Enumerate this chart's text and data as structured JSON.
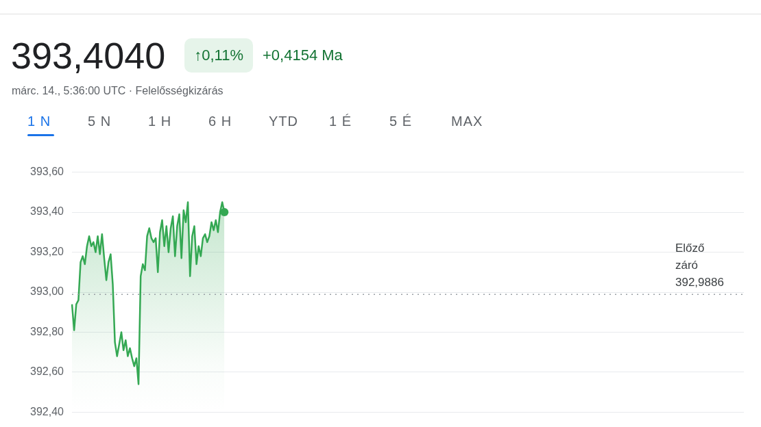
{
  "chart_data": {
    "type": "area",
    "title": "393,4040",
    "subtitle": "márc. 14., 5:36:00 UTC · Felelősségkizárás",
    "annotations": [
      "↑0,11%",
      "+0,4154 Ma",
      "1 N",
      "5 N",
      "1 H",
      "6 H",
      "YTD",
      "1 É",
      "5 É",
      "MAX"
    ],
    "categories": [
      null,
      null,
      null,
      null,
      null,
      null,
      null,
      null,
      null,
      null,
      null,
      null,
      null,
      null,
      null,
      null,
      null,
      null,
      null,
      null,
      null,
      null,
      null,
      null,
      null,
      null,
      null,
      null,
      null,
      null,
      null,
      null,
      null,
      null,
      null,
      null,
      null,
      null,
      null,
      null,
      null,
      null,
      null,
      null,
      null,
      null,
      null,
      null,
      null,
      null,
      null,
      null,
      null,
      null,
      null,
      null,
      null,
      null,
      null,
      null,
      null,
      null,
      null,
      null,
      null,
      null,
      null,
      null,
      null,
      null,
      null,
      null,
      null,
      null,
      null,
      null,
      null,
      null,
      null,
      null,
      null,
      null,
      null,
      null,
      null,
      null,
      null,
      null,
      null,
      null,
      null,
      null,
      null,
      null,
      null,
      null,
      null,
      null,
      null,
      null,
      null,
      null,
      null,
      null,
      null,
      null,
      null,
      null,
      null,
      null,
      null,
      null,
      null,
      null,
      null,
      null,
      null,
      null,
      null,
      null,
      null,
      null,
      null,
      null,
      null,
      null,
      null,
      null,
      null,
      null,
      null,
      null,
      null,
      null,
      null,
      null,
      null,
      null,
      null,
      null,
      null,
      null,
      null,
      null,
      null,
      null,
      null,
      null,
      null,
      null,
      null,
      null,
      null,
      null,
      null,
      null,
      null,
      null,
      null,
      null,
      null,
      null,
      null,
      null,
      null,
      null,
      null,
      null,
      null,
      null,
      null,
      null,
      null,
      null,
      null,
      null,
      null,
      null,
      null,
      null,
      null,
      null,
      null,
      null,
      null,
      null,
      null,
      null,
      null,
      null,
      null,
      null,
      null,
      null,
      null,
      null,
      null,
      null,
      null,
      null,
      null,
      null,
      null,
      null,
      null,
      null,
      null,
      null,
      null,
      null,
      null,
      null,
      null,
      null,
      null,
      null,
      null,
      null,
      null,
      null,
      null,
      null,
      null,
      null,
      null,
      null,
      null,
      null,
      null,
      null,
      null,
      null,
      null,
      null,
      null,
      null,
      null,
      null,
      null,
      null,
      null,
      null,
      null,
      null,
      null,
      null,
      null,
      null,
      null,
      null,
      null,
      null,
      null,
      null,
      null,
      null,
      null,
      null,
      null,
      null,
      null,
      null,
      null,
      null,
      null,
      null,
      null,
      null,
      null,
      null,
      null,
      null,
      null,
      null,
      null,
      null,
      null,
      null,
      null,
      null,
      null,
      null,
      null,
      null,
      null,
      null,
      null,
      null,
      null,
      null,
      null,
      null,
      null,
      null,
      null,
      null,
      null,
      null,
      null,
      null,
      null,
      null,
      null,
      null,
      null,
      null,
      null,
      null,
      null,
      null,
      null,
      null,
      null,
      null
    ],
    "series": [
      {
        "color": "#34a853",
        "values": [
          392.94,
          392.81,
          392.94,
          392.96,
          393.15,
          393.18,
          393.14,
          393.23,
          393.28,
          393.23,
          393.25,
          393.2,
          393.28,
          393.19,
          393.29,
          393.17,
          393.06,
          393.15,
          393.19,
          393.04,
          392.75,
          392.68,
          392.74,
          392.8,
          392.71,
          392.76,
          392.68,
          392.72,
          392.67,
          392.63,
          392.67,
          392.54,
          393.08,
          393.14,
          393.11,
          393.28,
          393.32,
          393.27,
          393.25,
          393.27,
          393.1,
          393.3,
          393.36,
          393.23,
          393.33,
          393.2,
          393.32,
          393.38,
          393.18,
          393.33,
          393.39,
          393.17,
          393.41,
          393.35,
          393.45,
          393.08,
          393.28,
          393.33,
          393.14,
          393.23,
          393.18,
          393.27,
          393.29,
          393.25,
          393.28,
          393.35,
          393.31,
          393.36,
          393.3,
          393.4,
          393.45,
          393.4,
          null,
          null,
          null,
          null,
          null,
          null,
          null,
          null,
          null,
          null,
          null,
          null,
          null,
          null,
          null,
          null,
          null,
          null,
          null,
          null,
          null,
          null,
          null,
          null,
          null,
          null,
          null,
          null,
          null,
          null,
          null,
          null,
          null,
          null,
          null,
          null,
          null,
          null,
          null,
          null,
          null,
          null,
          null,
          null,
          null,
          null,
          null,
          null,
          null,
          null,
          null,
          null,
          null,
          null,
          null,
          null,
          null,
          null,
          null,
          null,
          null,
          null,
          null,
          null,
          null,
          null,
          null,
          null,
          null,
          null,
          null,
          null,
          null,
          null,
          null,
          null,
          null,
          null,
          null,
          null,
          null,
          null,
          null,
          null,
          null,
          null,
          null,
          null,
          null,
          null,
          null,
          null,
          null,
          null,
          null,
          null,
          null,
          null,
          null,
          null,
          null,
          null,
          null,
          null,
          null,
          null,
          null,
          null,
          null,
          null,
          null,
          null,
          null,
          null,
          null,
          null,
          null,
          null,
          null,
          null,
          null,
          null,
          null,
          null,
          null,
          null,
          null,
          null,
          null,
          null,
          null,
          null,
          null,
          null,
          null,
          null,
          null,
          null,
          null,
          null,
          null,
          null,
          null,
          null,
          null,
          null,
          null,
          null,
          null,
          null,
          null,
          null,
          null,
          null,
          null,
          null,
          null,
          null,
          null,
          null,
          null,
          null,
          null,
          null,
          null,
          null,
          null,
          null,
          null,
          null,
          null,
          null,
          null,
          null,
          null,
          null,
          null,
          null,
          null,
          null,
          null,
          null,
          null,
          null,
          null,
          null,
          null,
          null,
          null,
          null,
          null,
          null,
          null,
          null,
          null,
          null,
          null,
          null,
          null,
          null,
          null,
          null,
          null,
          null,
          null,
          null,
          null,
          null,
          null,
          null,
          null,
          null,
          null,
          null,
          null,
          null,
          null,
          null,
          null,
          null,
          null,
          null,
          null,
          null,
          null,
          null,
          null,
          null,
          null,
          null,
          null,
          null,
          null,
          null,
          null,
          null,
          null,
          null,
          null,
          null,
          null,
          null
        ]
      }
    ],
    "ylim": [
      392.4,
      393.6
    ],
    "yticks": [
      {
        "value": 392.4,
        "label": "392,40"
      },
      {
        "value": 392.6,
        "label": "392,60"
      },
      {
        "value": 392.8,
        "label": "392,80"
      },
      {
        "value": 393.0,
        "label": "393,00"
      },
      {
        "value": 393.2,
        "label": "393,20"
      },
      {
        "value": 393.4,
        "label": "393,40"
      },
      {
        "value": 393.6,
        "label": "393,60"
      }
    ],
    "grid": "y",
    "tick_labels": "y",
    "ref_lines": [
      {
        "axis": "y",
        "value": 392.9886,
        "label": "Előző záró 392,9886",
        "line_style": "dotted",
        "color": "#9aa0a6"
      }
    ]
  }
}
